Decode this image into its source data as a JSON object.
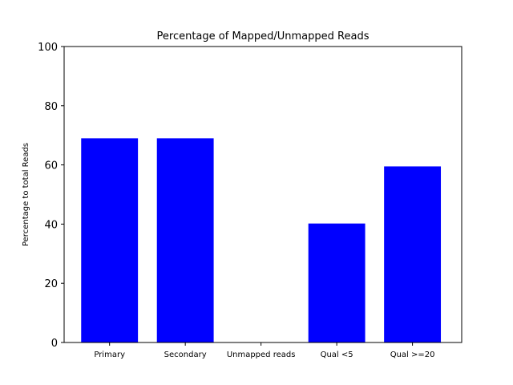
{
  "chart_data": {
    "type": "bar",
    "title": "Percentage of Mapped/Unmapped Reads",
    "xlabel": "",
    "ylabel": "Percentage to total Reads",
    "categories": [
      "Primary",
      "Secondary",
      "Unmapped reads",
      "Qual <5",
      "Qual >=20"
    ],
    "values": [
      69,
      69,
      0,
      40.2,
      59.5
    ],
    "ylim": [
      0,
      100
    ],
    "yticks": [
      0,
      20,
      40,
      60,
      80,
      100
    ],
    "grid": false,
    "legend": "none",
    "bar_color": "#0000ff"
  }
}
